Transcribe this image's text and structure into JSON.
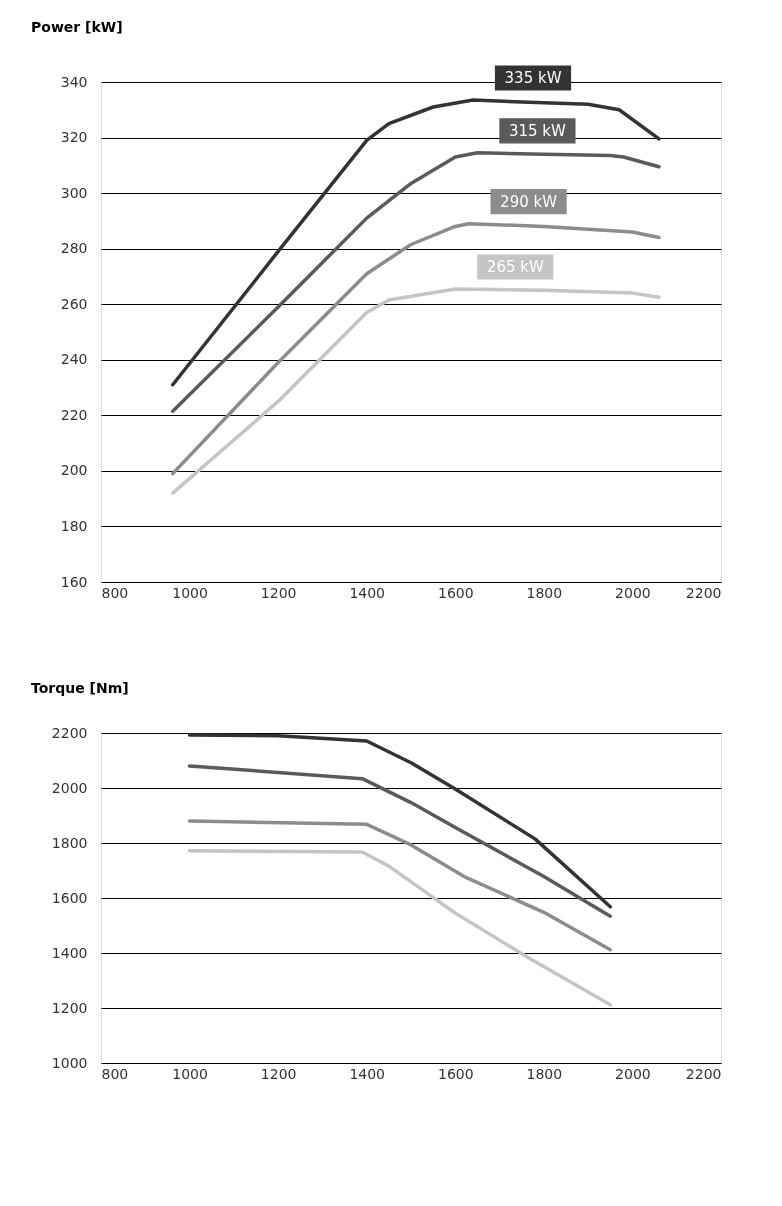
{
  "chart_data": [
    {
      "type": "line",
      "ylabel": "Power   [kW]",
      "xlim": [
        800,
        2200
      ],
      "xticks": [
        800,
        1000,
        1200,
        1400,
        1600,
        1800,
        2000,
        2200
      ],
      "ylim": [
        160,
        340
      ],
      "yticks": [
        160,
        180,
        200,
        220,
        240,
        260,
        280,
        300,
        320,
        340
      ],
      "grid": "y",
      "marker": "none",
      "line_style": "solid",
      "series": [
        {
          "name": "335 kW",
          "color": "#333333",
          "x": [
            962,
            1200,
            1400,
            1450,
            1550,
            1640,
            1800,
            1900,
            1970,
            2060
          ],
          "values": [
            231,
            279,
            319,
            325,
            331,
            333.5,
            332.5,
            332,
            330,
            319.5
          ]
        },
        {
          "name": "315 kW",
          "color": "#5a5a5a",
          "x": [
            962,
            1200,
            1400,
            1500,
            1600,
            1650,
            1800,
            1950,
            1980,
            2060
          ],
          "values": [
            221.5,
            259,
            291,
            303.5,
            313,
            314.5,
            314,
            313.5,
            313,
            309.5
          ]
        },
        {
          "name": "290 kW",
          "color": "#8c8c8c",
          "x": [
            962,
            1200,
            1400,
            1500,
            1600,
            1630,
            1800,
            2000,
            2060
          ],
          "values": [
            199,
            239,
            271,
            281.5,
            288,
            289,
            288,
            286,
            284
          ]
        },
        {
          "name": "265 kW",
          "color": "#c4c4c4",
          "x": [
            962,
            1200,
            1400,
            1450,
            1600,
            1800,
            2000,
            2060
          ],
          "values": [
            192,
            225,
            257,
            261.5,
            265.5,
            265,
            264,
            262.5
          ]
        }
      ]
    },
    {
      "type": "line",
      "ylabel": "Torque [Nm]",
      "xlim": [
        800,
        2200
      ],
      "xticks": [
        800,
        1000,
        1200,
        1400,
        1600,
        1800,
        2000,
        2200
      ],
      "ylim": [
        1000,
        2200
      ],
      "yticks": [
        1000,
        1200,
        1400,
        1600,
        1800,
        2000,
        2200
      ],
      "grid": "y",
      "marker": "none",
      "line_style": "solid",
      "series": [
        {
          "color": "#333333",
          "x": [
            1000,
            1200,
            1400,
            1500,
            1600,
            1780,
            1950
          ],
          "values": [
            2193,
            2190,
            2171,
            2092,
            1996,
            1815,
            1568
          ]
        },
        {
          "color": "#5a5a5a",
          "x": [
            1000,
            1390,
            1500,
            1600,
            1800,
            1950
          ],
          "values": [
            2080,
            2034,
            1947,
            1856,
            1678,
            1534
          ]
        },
        {
          "color": "#8c8c8c",
          "x": [
            1000,
            1400,
            1500,
            1620,
            1800,
            1950
          ],
          "values": [
            1880,
            1868,
            1793,
            1678,
            1548,
            1412
          ]
        },
        {
          "color": "#c4c4c4",
          "x": [
            1000,
            1390,
            1450,
            1600,
            1770,
            1950
          ],
          "values": [
            1772,
            1767,
            1716,
            1545,
            1378,
            1212
          ]
        }
      ]
    }
  ]
}
